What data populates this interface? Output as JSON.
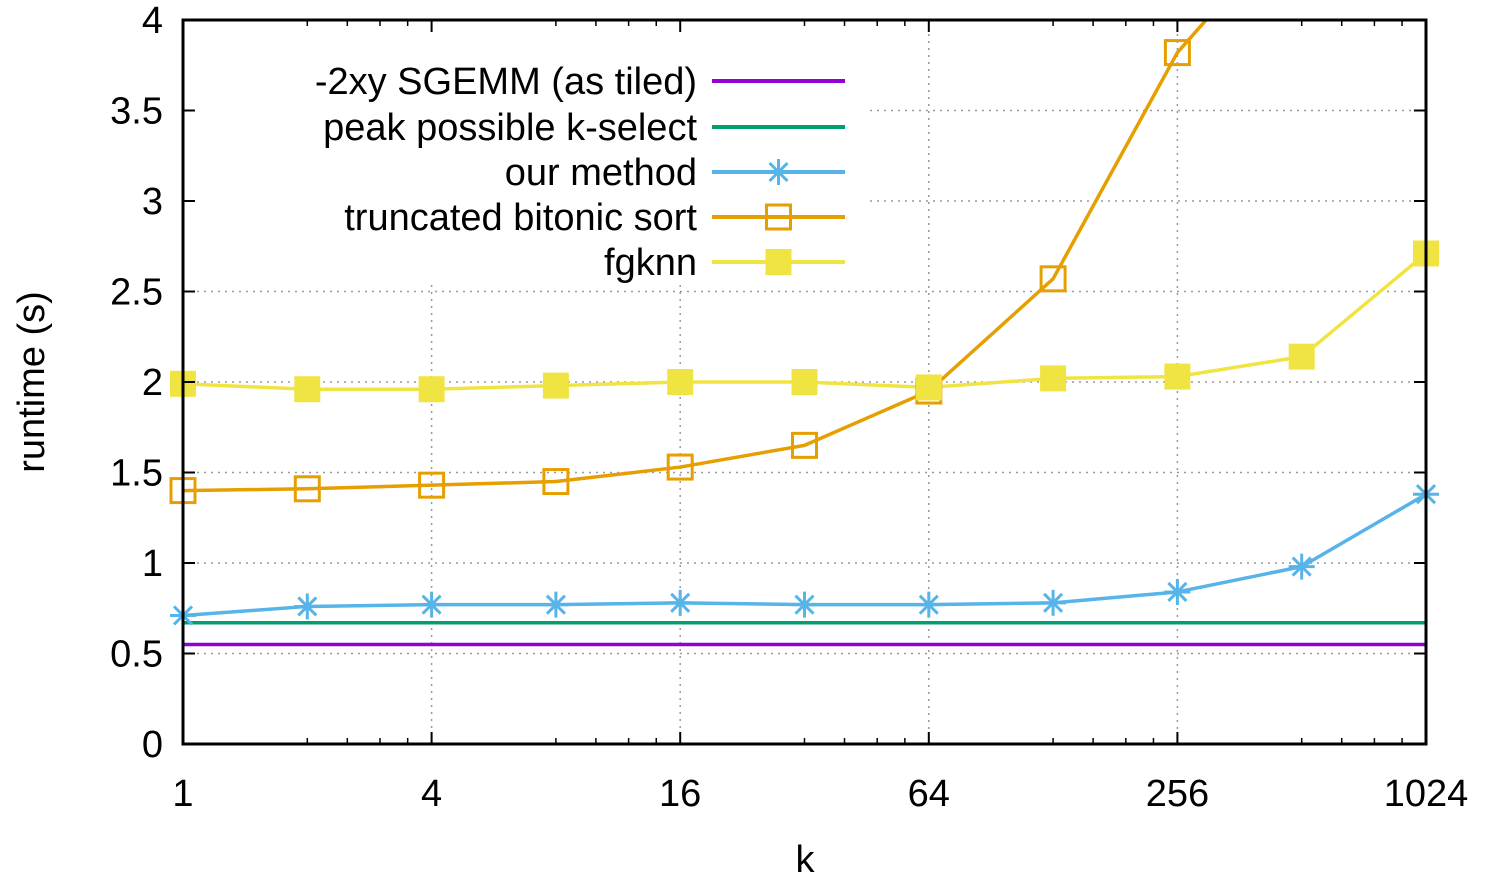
{
  "chart_data": {
    "type": "line",
    "title": "",
    "xlabel": "k",
    "ylabel": "runtime (s)",
    "x_scale": "log2",
    "xlim": [
      1,
      1024
    ],
    "ylim": [
      0,
      4
    ],
    "grid": true,
    "legend_position": "top-left",
    "x_ticks": [
      1,
      4,
      16,
      64,
      256,
      1024
    ],
    "x_tick_labels": [
      "1",
      "4",
      "16",
      "64",
      "256",
      "1024"
    ],
    "y_ticks": [
      0,
      0.5,
      1,
      1.5,
      2,
      2.5,
      3,
      3.5,
      4
    ],
    "y_tick_labels": [
      "0",
      "0.5",
      "1",
      "1.5",
      "2",
      "2.5",
      "3",
      "3.5",
      "4"
    ],
    "x": [
      1,
      2,
      4,
      8,
      16,
      32,
      64,
      128,
      256,
      512,
      1024
    ],
    "series": [
      {
        "name": "-2xy SGEMM (as tiled)",
        "color": "#9400d3",
        "marker": "none",
        "values": [
          0.55,
          0.55,
          0.55,
          0.55,
          0.55,
          0.55,
          0.55,
          0.55,
          0.55,
          0.55,
          0.55
        ]
      },
      {
        "name": "peak possible k-select",
        "color": "#009e73",
        "marker": "none",
        "values": [
          0.67,
          0.67,
          0.67,
          0.67,
          0.67,
          0.67,
          0.67,
          0.67,
          0.67,
          0.67,
          0.67
        ]
      },
      {
        "name": "our method",
        "color": "#56b4e9",
        "marker": "asterisk",
        "values": [
          0.71,
          0.76,
          0.77,
          0.77,
          0.78,
          0.77,
          0.77,
          0.78,
          0.84,
          0.98,
          1.38
        ]
      },
      {
        "name": "truncated bitonic sort",
        "color": "#e69f00",
        "marker": "open-square",
        "values": [
          1.4,
          1.41,
          1.43,
          1.45,
          1.53,
          1.65,
          1.95,
          2.57,
          3.82,
          4.6,
          null
        ]
      },
      {
        "name": "fgknn",
        "color": "#f0e442",
        "marker": "filled-square",
        "values": [
          1.99,
          1.96,
          1.96,
          1.98,
          2.0,
          2.0,
          1.97,
          2.02,
          2.03,
          2.14,
          2.71
        ]
      }
    ]
  }
}
